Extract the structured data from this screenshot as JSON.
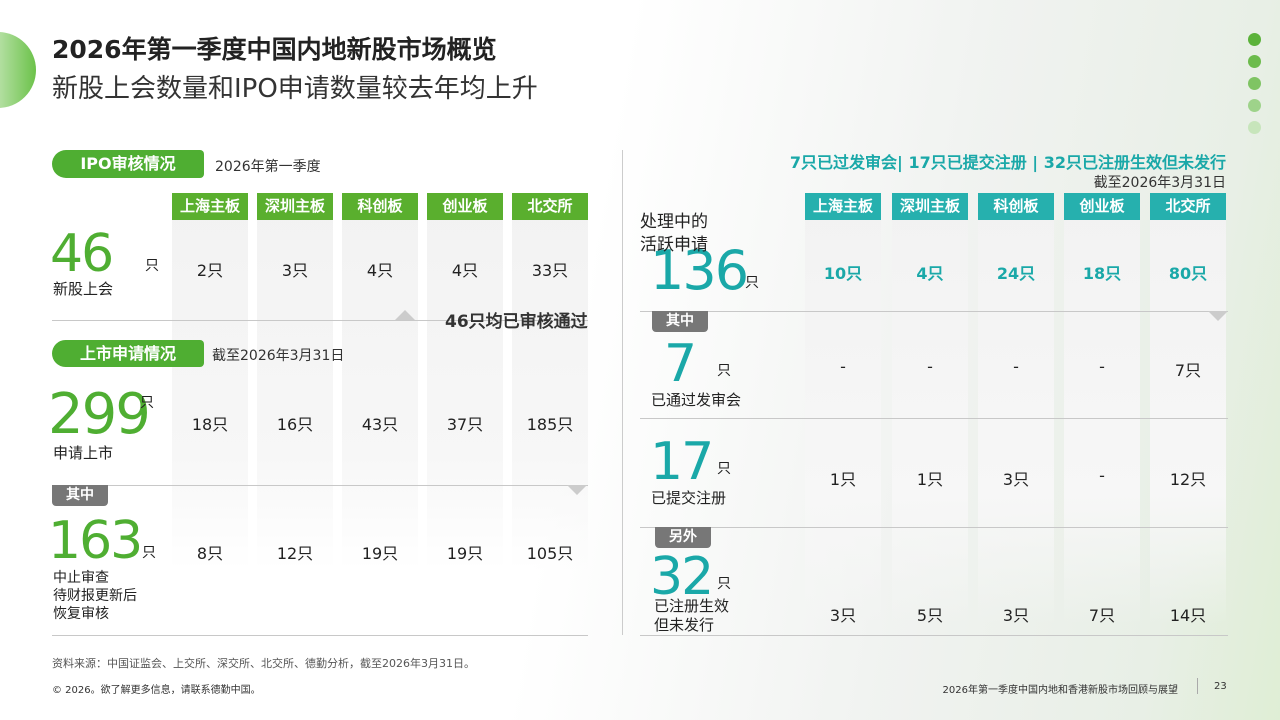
{
  "header": {
    "title": "2026年第一季度中国内地新股市场概览",
    "subtitle": "新股上会数量和IPO申请数量较去年均上升"
  },
  "left": {
    "review": {
      "tag": "IPO审核情况",
      "period": "2026年第一季度"
    },
    "boards": [
      "上海主板",
      "深圳主板",
      "科创板",
      "创业板",
      "北交所"
    ],
    "hearing": {
      "number": "46",
      "unit": "只",
      "label": [
        "新股上会"
      ],
      "cells": [
        "2只",
        "3只",
        "4只",
        "4只",
        "33只"
      ]
    },
    "note": "46只均已审核通过",
    "listing": {
      "tag": "上市申请情况",
      "period": "截至2026年3月31日"
    },
    "applied": {
      "number": "299",
      "unit": "只",
      "label": [
        "申请上市"
      ],
      "cells": [
        "18只",
        "16只",
        "43只",
        "37只",
        "185只"
      ]
    },
    "sub_tag": "其中",
    "suspended": {
      "number": "163",
      "unit": "只",
      "label": [
        "中止审查",
        "待财报更新后",
        "恢复审核"
      ],
      "cells": [
        "8只",
        "12只",
        "19只",
        "19只",
        "105只"
      ]
    }
  },
  "right": {
    "headline": "7只已过发审会| 17只已提交注册 | 32只已注册生效但未发行",
    "date": "截至2026年3月31日",
    "boards": [
      "上海主板",
      "深圳主板",
      "科创板",
      "创业板",
      "北交所"
    ],
    "active": {
      "number": "136",
      "unit": "只",
      "label": [
        "处理中的",
        "活跃申请"
      ],
      "cells": [
        "10只",
        "4只",
        "24只",
        "18只",
        "80只"
      ]
    },
    "sub_tag": "其中",
    "approved": {
      "number": "7",
      "unit": "只",
      "label": [
        "已通过发审会"
      ],
      "cells": [
        "-",
        "-",
        "-",
        "-",
        "7只"
      ]
    },
    "submitted": {
      "number": "17",
      "unit": "只",
      "label": [
        "已提交注册"
      ],
      "cells": [
        "1只",
        "1只",
        "3只",
        "-",
        "12只"
      ]
    },
    "extra_tag": "另外",
    "registered": {
      "number": "32",
      "unit": "只",
      "label": [
        "已注册生效",
        "但未发行"
      ],
      "cells": [
        "3只",
        "5只",
        "3只",
        "7只",
        "14只"
      ]
    }
  },
  "footer": {
    "source": "资料来源：中国证监会、上交所、深交所、北交所、德勤分析，截至2026年3月31日。",
    "copyright": "© 2026。欲了解更多信息，请联系德勤中国。",
    "report": "2026年第一季度中国内地和香港新股市场回顾与展望",
    "page": "23"
  }
}
